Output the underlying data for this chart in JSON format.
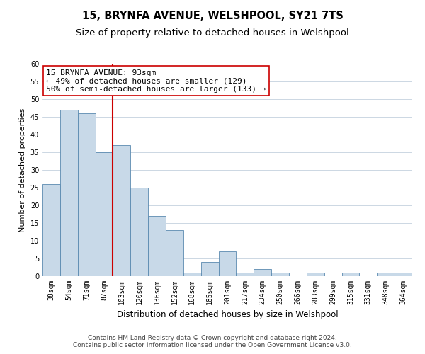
{
  "title": "15, BRYNFA AVENUE, WELSHPOOL, SY21 7TS",
  "subtitle": "Size of property relative to detached houses in Welshpool",
  "xlabel": "Distribution of detached houses by size in Welshpool",
  "ylabel": "Number of detached properties",
  "bin_labels": [
    "38sqm",
    "54sqm",
    "71sqm",
    "87sqm",
    "103sqm",
    "120sqm",
    "136sqm",
    "152sqm",
    "168sqm",
    "185sqm",
    "201sqm",
    "217sqm",
    "234sqm",
    "250sqm",
    "266sqm",
    "283sqm",
    "299sqm",
    "315sqm",
    "331sqm",
    "348sqm",
    "364sqm"
  ],
  "bar_values": [
    26,
    47,
    46,
    35,
    37,
    25,
    17,
    13,
    1,
    4,
    7,
    1,
    2,
    1,
    0,
    1,
    0,
    1,
    0,
    1,
    1
  ],
  "bar_color": "#c8d9e8",
  "bar_edge_color": "#5a8ab0",
  "vline_pos": 3.5,
  "vline_color": "#cc0000",
  "ylim": [
    0,
    60
  ],
  "yticks": [
    0,
    5,
    10,
    15,
    20,
    25,
    30,
    35,
    40,
    45,
    50,
    55,
    60
  ],
  "annotation_text": "15 BRYNFA AVENUE: 93sqm\n← 49% of detached houses are smaller (129)\n50% of semi-detached houses are larger (133) →",
  "annotation_box_color": "#ffffff",
  "annotation_box_edge": "#cc0000",
  "footer_line1": "Contains HM Land Registry data © Crown copyright and database right 2024.",
  "footer_line2": "Contains public sector information licensed under the Open Government Licence v3.0.",
  "title_fontsize": 10.5,
  "subtitle_fontsize": 9.5,
  "xlabel_fontsize": 8.5,
  "ylabel_fontsize": 8,
  "tick_fontsize": 7,
  "annotation_fontsize": 8,
  "footer_fontsize": 6.5
}
